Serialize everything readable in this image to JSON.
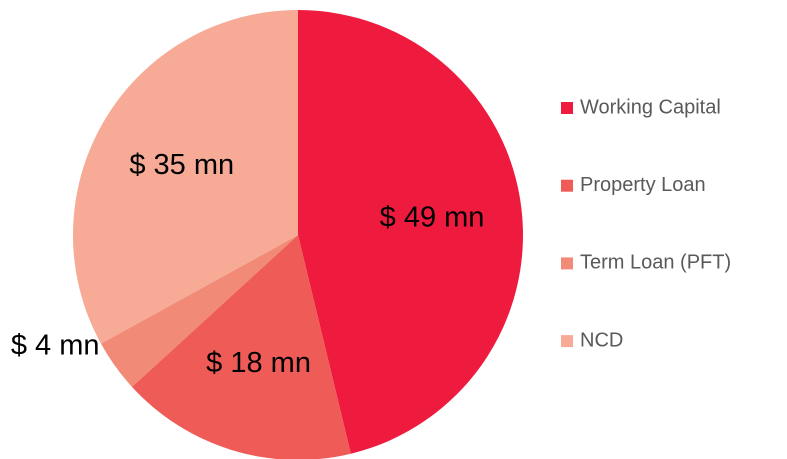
{
  "chart_data": {
    "type": "pie",
    "categories": [
      "Working Capital",
      "Property Loan",
      "Term Loan (PFT)",
      "NCD"
    ],
    "values": [
      49,
      18,
      4,
      35
    ],
    "value_labels": [
      "$ 49 mn",
      "$ 18 mn",
      "$ 4 mn",
      "$ 35 mn"
    ],
    "colors": [
      "#ee1b3f",
      "#ef5b56",
      "#f28a78",
      "#f7aa96"
    ],
    "legend": "right"
  }
}
